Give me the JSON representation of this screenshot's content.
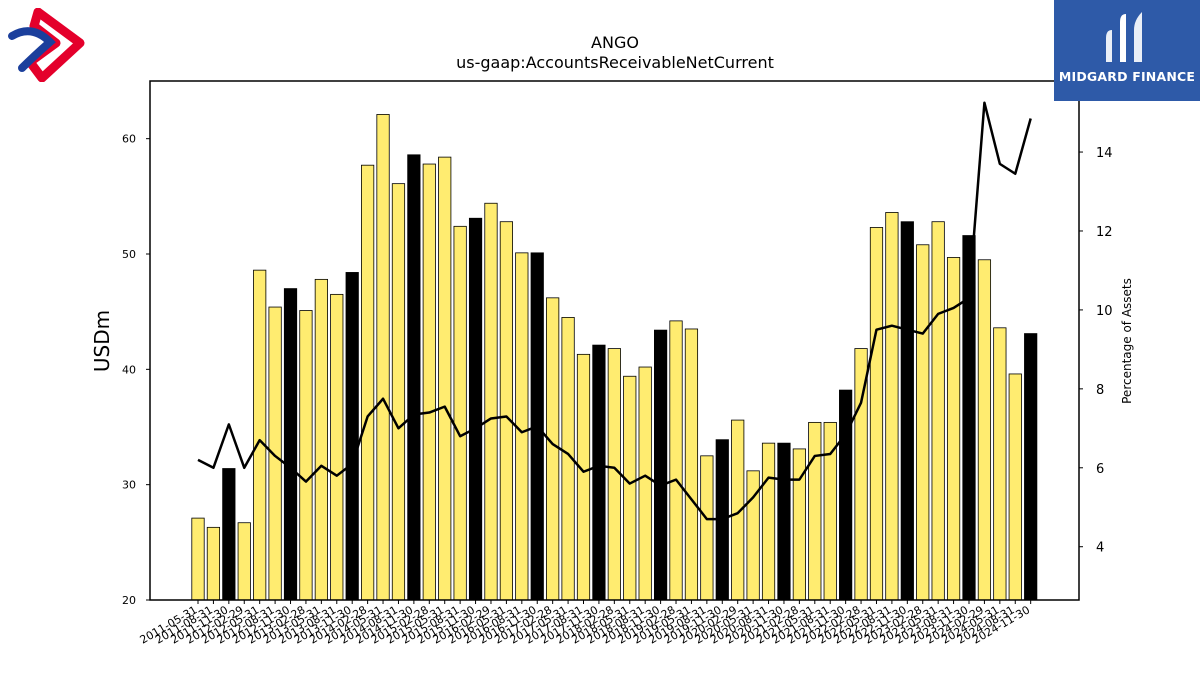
{
  "brand": {
    "name": "MIDGARD FINANCE",
    "accent_color": "#2e5aa8",
    "left_logo_colors": [
      "#e4002b",
      "#1b3f9c"
    ]
  },
  "chart_data": {
    "type": "bar+line",
    "title": "ANGO",
    "subtitle": "us-gaap:AccountsReceivableNetCurrent",
    "ylabel": "USDm",
    "y2label": "Percentage of Assets",
    "ylim": [
      20,
      65
    ],
    "y2lim": [
      2.65,
      15.8
    ],
    "yticks": [
      20,
      30,
      40,
      50,
      60
    ],
    "y2ticks": [
      4,
      6,
      8,
      10,
      12,
      14
    ],
    "grid": false,
    "bar_colors": {
      "regular": "#ffec70",
      "highlight": "#000000",
      "edge": "#000000"
    },
    "line_color": "#000000",
    "categories": [
      "2011-05-31",
      "2011-08-31",
      "2011-11-30",
      "2012-02-29",
      "2012-05-31",
      "2012-08-31",
      "2012-11-30",
      "2013-02-28",
      "2013-05-31",
      "2013-08-31",
      "2013-11-30",
      "2014-02-28",
      "2014-05-31",
      "2014-08-31",
      "2014-11-30",
      "2015-02-28",
      "2015-05-31",
      "2015-08-31",
      "2015-11-30",
      "2016-02-29",
      "2016-05-31",
      "2016-08-31",
      "2016-11-30",
      "2017-02-28",
      "2017-05-31",
      "2017-08-31",
      "2017-11-30",
      "2018-02-28",
      "2018-05-31",
      "2018-08-31",
      "2018-11-30",
      "2019-02-28",
      "2019-05-31",
      "2019-08-31",
      "2019-11-30",
      "2020-02-29",
      "2020-05-31",
      "2020-08-31",
      "2020-11-30",
      "2021-02-28",
      "2021-05-31",
      "2021-08-31",
      "2021-11-30",
      "2022-02-28",
      "2022-05-31",
      "2022-08-31",
      "2022-11-30",
      "2023-02-28",
      "2023-05-31",
      "2023-08-31",
      "2023-11-30",
      "2024-02-29",
      "2024-05-31",
      "2024-08-31",
      "2024-11-30"
    ],
    "series": [
      {
        "type": "bar",
        "axis": "left",
        "values": [
          27.1,
          26.3,
          31.4,
          26.7,
          48.6,
          45.4,
          47.0,
          45.1,
          47.8,
          46.5,
          48.4,
          57.7,
          62.1,
          56.1,
          58.6,
          57.8,
          58.4,
          52.4,
          53.1,
          54.4,
          52.8,
          50.1,
          50.1,
          46.2,
          44.5,
          41.3,
          42.1,
          41.8,
          39.4,
          40.2,
          43.4,
          44.2,
          43.5,
          32.5,
          33.9,
          35.6,
          31.2,
          33.6,
          33.6,
          33.1,
          35.4,
          35.4,
          38.2,
          41.8,
          52.3,
          53.6,
          52.8,
          50.8,
          52.8,
          49.7,
          51.6,
          49.5,
          43.6,
          39.6,
          43.1
        ],
        "highlight": [
          false,
          false,
          true,
          false,
          false,
          false,
          true,
          false,
          false,
          false,
          true,
          false,
          false,
          false,
          true,
          false,
          false,
          false,
          true,
          false,
          false,
          false,
          true,
          false,
          false,
          false,
          true,
          false,
          false,
          false,
          true,
          false,
          false,
          false,
          true,
          false,
          false,
          false,
          true,
          false,
          false,
          false,
          true,
          false,
          false,
          false,
          true,
          false,
          false,
          false,
          true,
          false,
          false,
          false,
          true
        ]
      },
      {
        "type": "line",
        "axis": "right",
        "values": [
          6.2,
          6.0,
          7.1,
          6.0,
          6.7,
          6.3,
          6.0,
          5.65,
          6.05,
          5.8,
          6.1,
          7.3,
          7.75,
          7.0,
          7.35,
          7.4,
          7.55,
          6.8,
          7.0,
          7.25,
          7.3,
          6.9,
          7.05,
          6.6,
          6.35,
          5.9,
          6.05,
          6.0,
          5.6,
          5.8,
          5.55,
          5.7,
          5.2,
          4.7,
          4.7,
          4.85,
          5.25,
          5.75,
          5.7,
          5.7,
          6.3,
          6.35,
          6.85,
          7.65,
          9.5,
          9.6,
          9.5,
          9.4,
          9.9,
          10.05,
          10.3,
          15.25,
          13.7,
          13.45,
          14.85
        ]
      }
    ]
  }
}
